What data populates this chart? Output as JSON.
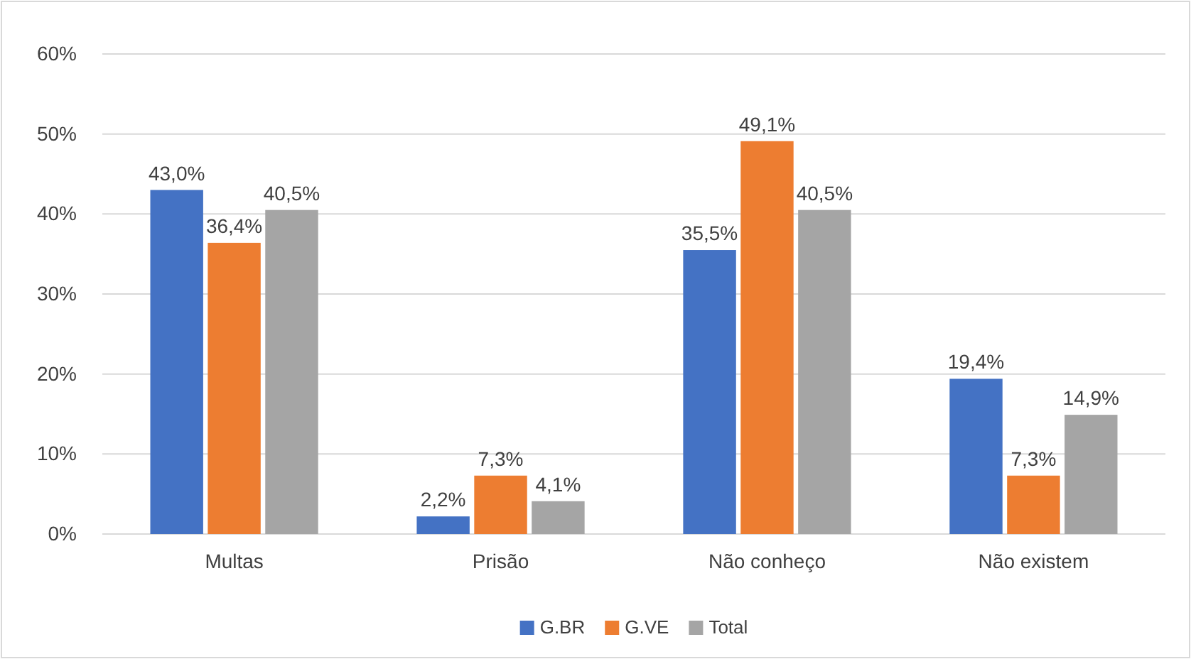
{
  "chart_data": {
    "type": "bar",
    "categories": [
      "Multas",
      "Prisão",
      "Não conheço",
      "Não existem"
    ],
    "series": [
      {
        "name": "G.BR",
        "color": "#4472c4",
        "values": [
          43.0,
          2.2,
          35.5,
          19.4
        ],
        "value_labels": [
          "43,0%",
          "2,2%",
          "35,5%",
          "19,4%"
        ]
      },
      {
        "name": "G.VE",
        "color": "#ed7d31",
        "values": [
          36.4,
          7.3,
          49.1,
          7.3
        ],
        "value_labels": [
          "36,4%",
          "7,3%",
          "49,1%",
          "7,3%"
        ]
      },
      {
        "name": "Total",
        "color": "#a5a5a5",
        "values": [
          40.5,
          4.1,
          40.5,
          14.9
        ],
        "value_labels": [
          "40,5%",
          "4,1%",
          "40,5%",
          "14,9%"
        ]
      }
    ],
    "ylim": [
      0,
      60
    ],
    "yticks": [
      {
        "value": 0,
        "label": "0%"
      },
      {
        "value": 10,
        "label": "10%"
      },
      {
        "value": 20,
        "label": "20%"
      },
      {
        "value": 30,
        "label": "30%"
      },
      {
        "value": 40,
        "label": "40%"
      },
      {
        "value": 50,
        "label": "50%"
      },
      {
        "value": 60,
        "label": "60%"
      }
    ],
    "grid": "y",
    "legend": "bottom"
  }
}
